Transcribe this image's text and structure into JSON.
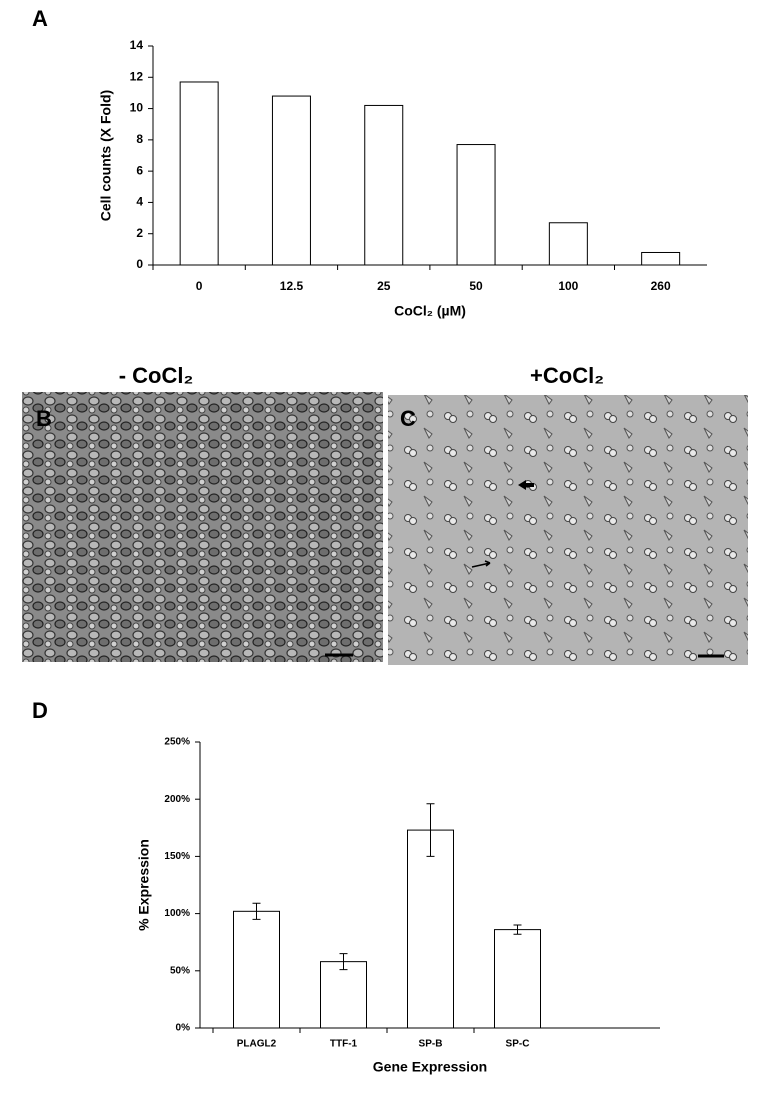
{
  "figure_labels": [
    "A",
    "D"
  ],
  "micrographs": [
    {
      "label": "B",
      "title": "- CoCl₂"
    },
    {
      "label": "C",
      "title": "+CoCl₂"
    }
  ],
  "chart_data": [
    {
      "type": "bar",
      "y_label": "Cell counts (X Fold)",
      "x_label": "CoCl₂ (µM)",
      "categories": [
        "0",
        "12.5",
        "25",
        "50",
        "100",
        "260"
      ],
      "values": [
        11.7,
        10.8,
        10.2,
        7.7,
        2.7,
        0.8
      ],
      "color": "#ffffff",
      "ylim": [
        0,
        14
      ],
      "yticks": [
        0,
        2,
        4,
        6,
        8,
        10,
        12,
        14
      ]
    },
    {
      "type": "bar",
      "y_label": "% Expression",
      "x_label": "Gene Expression",
      "categories": [
        "PLAGL2",
        "TTF-1",
        "SP-B",
        "SP-C"
      ],
      "values": [
        102,
        58,
        173,
        86
      ],
      "errors": [
        7,
        7,
        23,
        4
      ],
      "color": "#ffffff",
      "ylim": [
        0,
        250
      ],
      "yticks": [
        {
          "value": 0,
          "label": "0%"
        },
        {
          "value": 50,
          "label": "50%"
        },
        {
          "value": 100,
          "label": "100%"
        },
        {
          "value": 150,
          "label": "150%"
        },
        {
          "value": 200,
          "label": "200%"
        },
        {
          "value": 250,
          "label": "250%"
        }
      ]
    }
  ]
}
